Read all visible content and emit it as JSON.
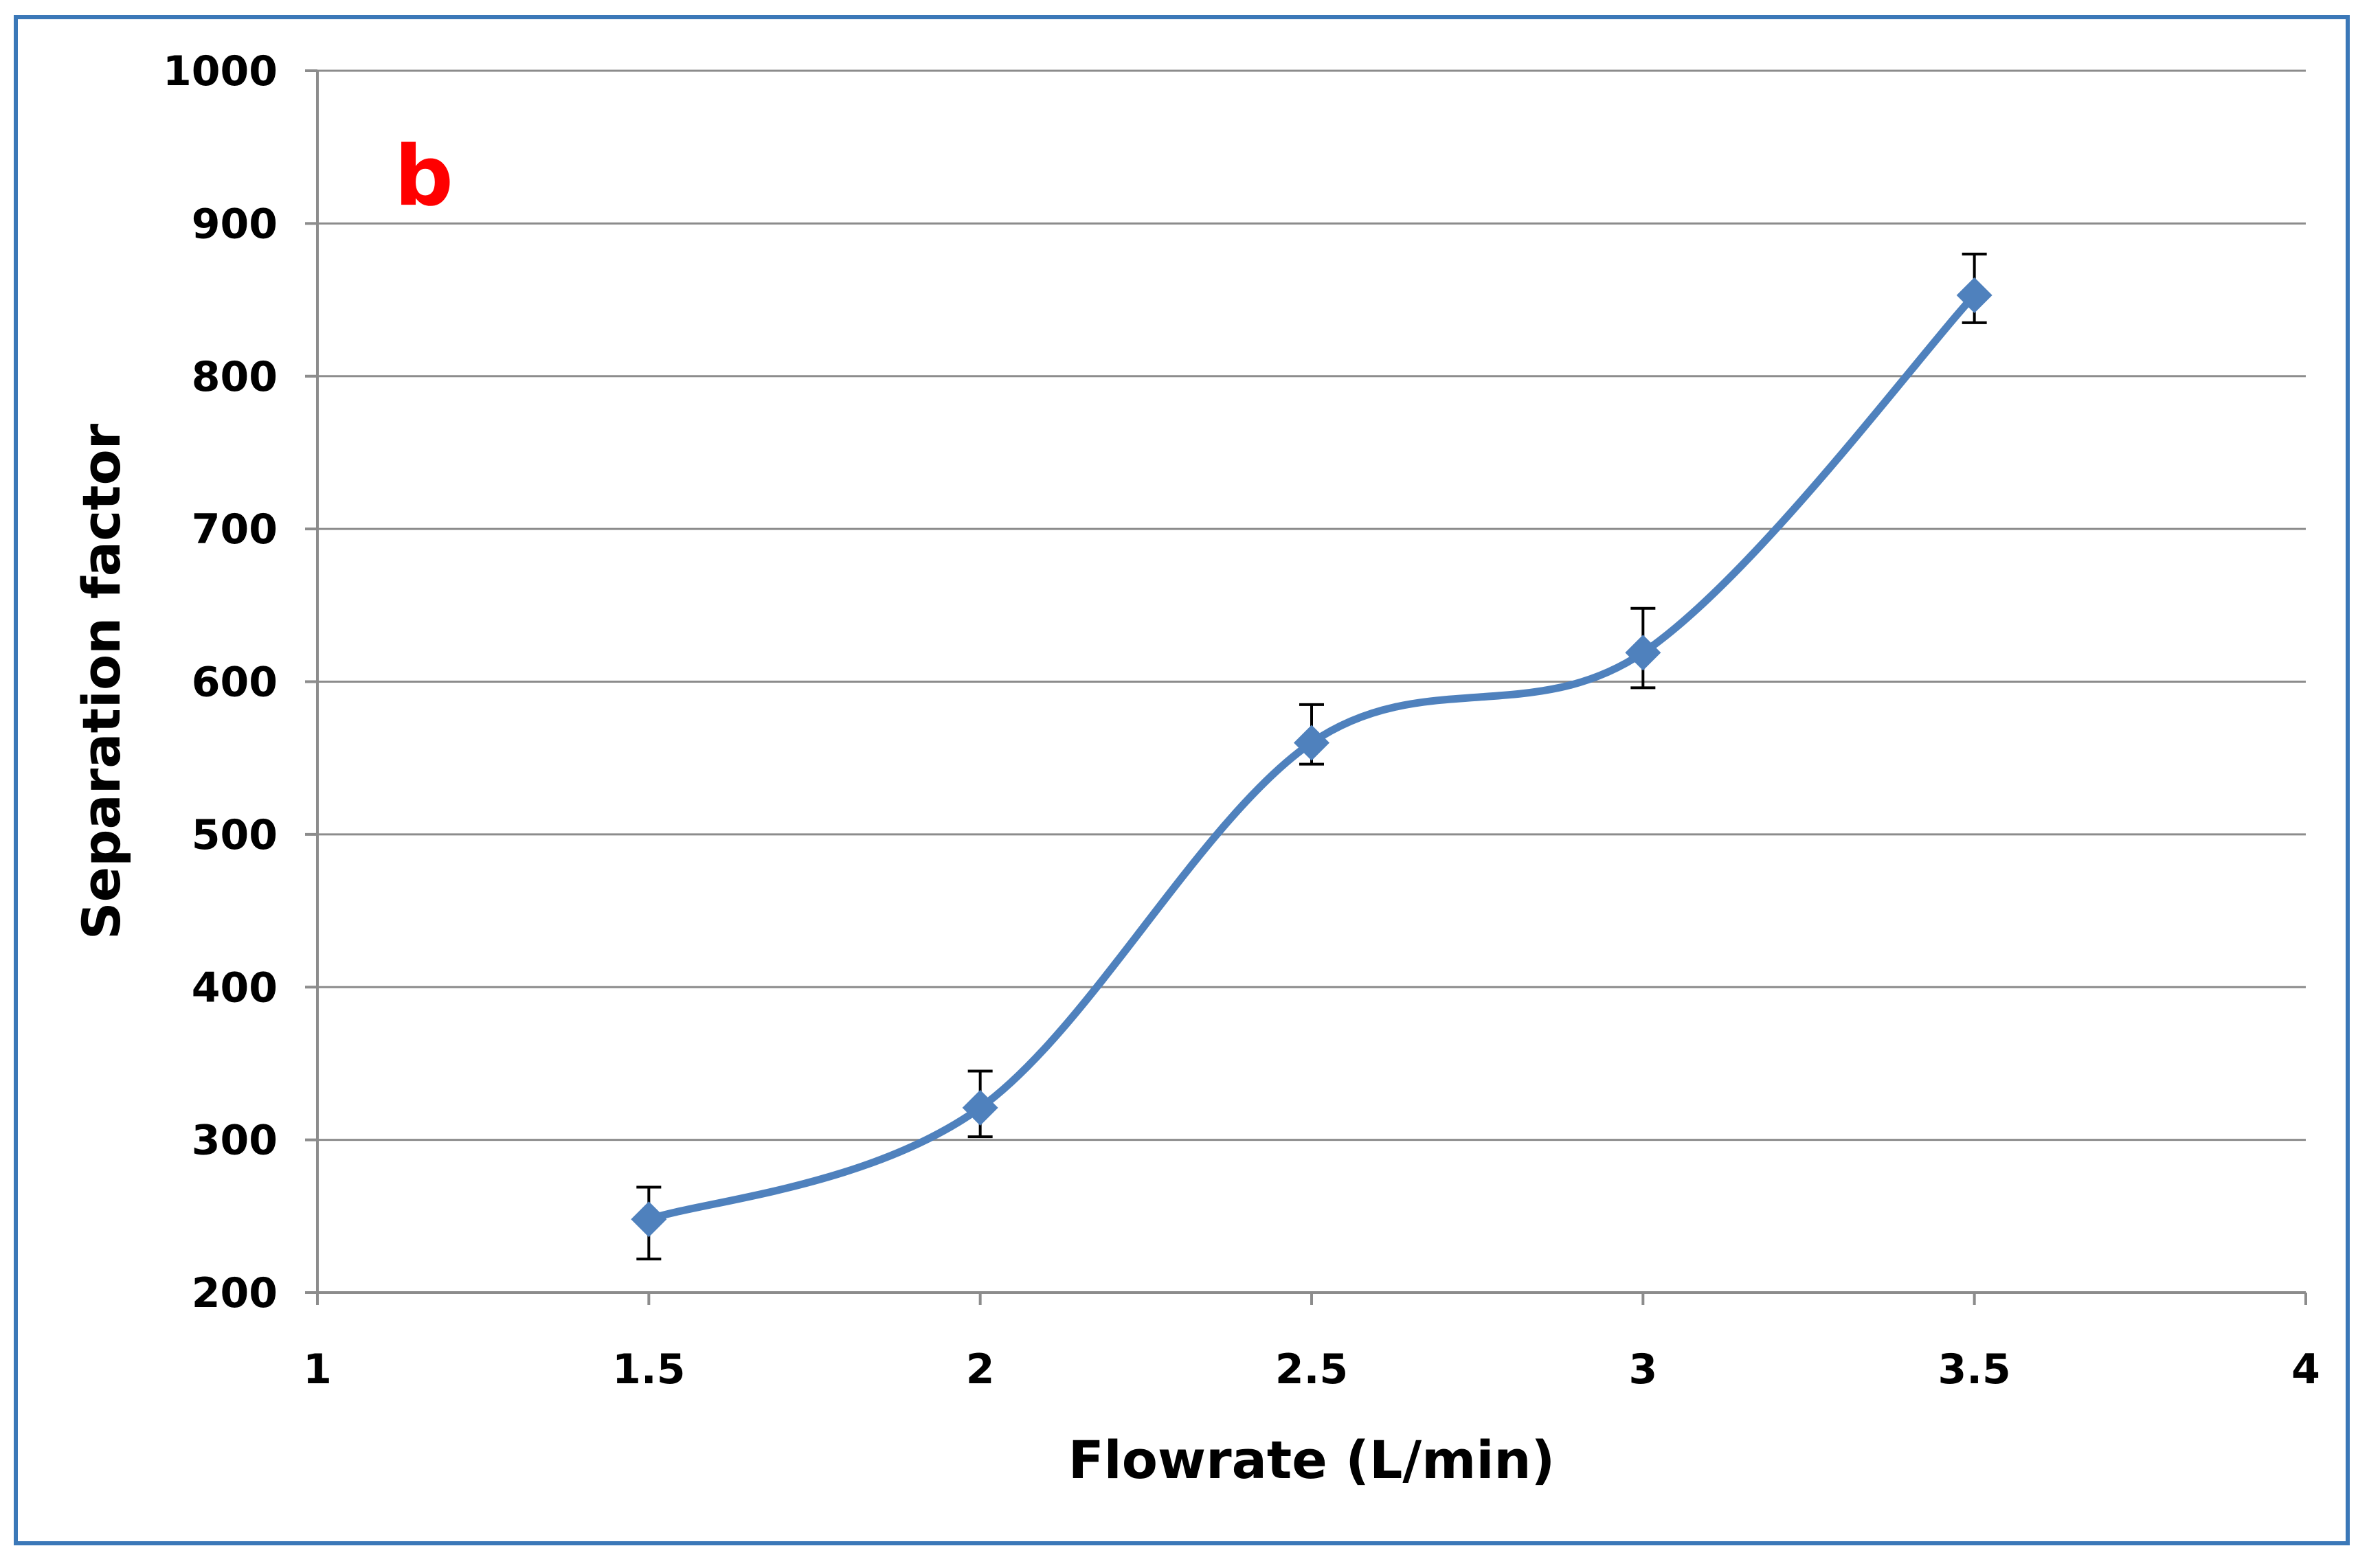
{
  "chart_data": {
    "type": "line",
    "panel_label": "b",
    "xlabel": "Flowrate (L/min)",
    "ylabel": "Separation factor",
    "xlim": [
      1,
      4
    ],
    "ylim": [
      200,
      1000
    ],
    "x_ticks": [
      1,
      1.5,
      2,
      2.5,
      3,
      3.5,
      4
    ],
    "x_tick_labels": [
      "1",
      "1.5",
      "2",
      "2.5",
      "3",
      "3.5",
      "4"
    ],
    "y_ticks": [
      200,
      300,
      400,
      500,
      600,
      700,
      800,
      900,
      1000
    ],
    "y_tick_labels": [
      "200",
      "300",
      "400",
      "500",
      "600",
      "700",
      "800",
      "900",
      "1000"
    ],
    "grid": "horizontal",
    "smoothed": true,
    "series": [
      {
        "x": [
          1.5,
          2,
          2.5,
          3,
          3.5
        ],
        "values": [
          248,
          321,
          560,
          619,
          853
        ],
        "error_low": [
          222,
          302,
          546,
          596,
          835
        ],
        "error_high": [
          269,
          345,
          585,
          648,
          880
        ],
        "marker": "diamond"
      }
    ]
  },
  "colors": {
    "series": "#4f81bd",
    "panel_label": "#ff0000",
    "grid": "#8c8c8c",
    "frame": "#3b78b8"
  }
}
